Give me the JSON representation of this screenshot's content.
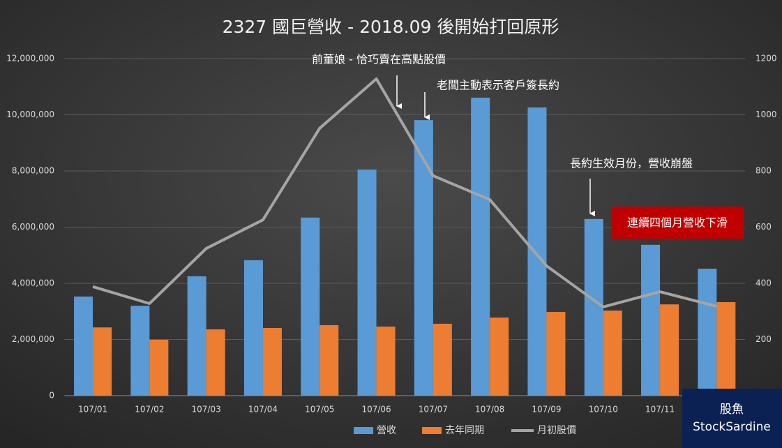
{
  "chart_data": {
    "type": "bar-line",
    "title": "2327 國巨營收 - 2018.09 後開始打回原形",
    "categories": [
      "107/01",
      "107/02",
      "107/03",
      "107/04",
      "107/05",
      "107/06",
      "107/07",
      "107/08",
      "107/09",
      "107/10",
      "107/11",
      null
    ],
    "series": [
      {
        "name": "營收",
        "type": "bar",
        "color": "#5b9bd5",
        "values": [
          3530000,
          3200000,
          4250000,
          4820000,
          6340000,
          8050000,
          9810000,
          10610000,
          10260000,
          6290000,
          5370000,
          4520000
        ]
      },
      {
        "name": "去年同期",
        "type": "bar",
        "color": "#ed7d31",
        "values": [
          2430000,
          1990000,
          2360000,
          2410000,
          2510000,
          2460000,
          2560000,
          2780000,
          2980000,
          3030000,
          3250000,
          3330000
        ]
      },
      {
        "name": "月初股價",
        "type": "line",
        "axis": "y2",
        "color": "#a5a5a5",
        "values": [
          388,
          328,
          524,
          626,
          952,
          1128,
          783,
          698,
          462,
          316,
          370,
          318
        ]
      }
    ],
    "ylim": [
      0,
      12000000
    ],
    "yticks": [
      0,
      {
        "value": 2000000,
        "label": "2,000,000"
      },
      {
        "value": 4000000,
        "label": "4,000,000"
      },
      {
        "value": 6000000,
        "label": "6,000,000"
      },
      {
        "value": 8000000,
        "label": "8,000,000"
      },
      {
        "value": 10000000,
        "label": "10,000,000"
      },
      {
        "value": 12000000,
        "label": "12,000,000"
      }
    ],
    "y2lim": [
      0,
      1200
    ],
    "y2ticks": [
      200,
      400,
      600,
      800,
      1000,
      1200
    ],
    "grid": true,
    "legend": "bottom",
    "annotations": [
      "前董娘 - 恰巧賣在高點股價",
      "老闆主動表示客戶簽長約",
      "長約生效月份，營收崩盤",
      "連續四個月營收下滑"
    ]
  },
  "logo": {
    "name": "股魚",
    "brand": "StockSardine"
  }
}
